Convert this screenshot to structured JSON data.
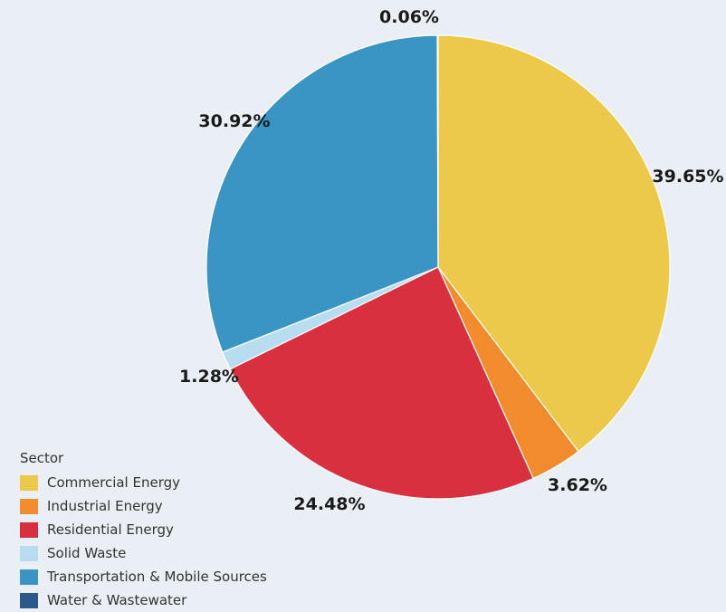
{
  "chart_data": {
    "type": "pie",
    "legend_title": "Sector",
    "legend_position": "bottom-left",
    "series": [
      {
        "name": "Commercial Energy",
        "value": 39.65,
        "label": "39.65%",
        "color": "#ecc94b"
      },
      {
        "name": "Industrial Energy",
        "value": 3.62,
        "label": "3.62%",
        "color": "#f08c2d"
      },
      {
        "name": "Residential Energy",
        "value": 24.48,
        "label": "24.48%",
        "color": "#d93040"
      },
      {
        "name": "Solid Waste",
        "value": 1.28,
        "label": "1.28%",
        "color": "#b8dcf0"
      },
      {
        "name": "Transportation & Mobile Sources",
        "value": 30.92,
        "label": "30.92%",
        "color": "#3a95c5"
      },
      {
        "name": "Water & Wastewater",
        "value": 0.06,
        "label": "0.06%",
        "color": "#2a5a8c"
      }
    ]
  }
}
